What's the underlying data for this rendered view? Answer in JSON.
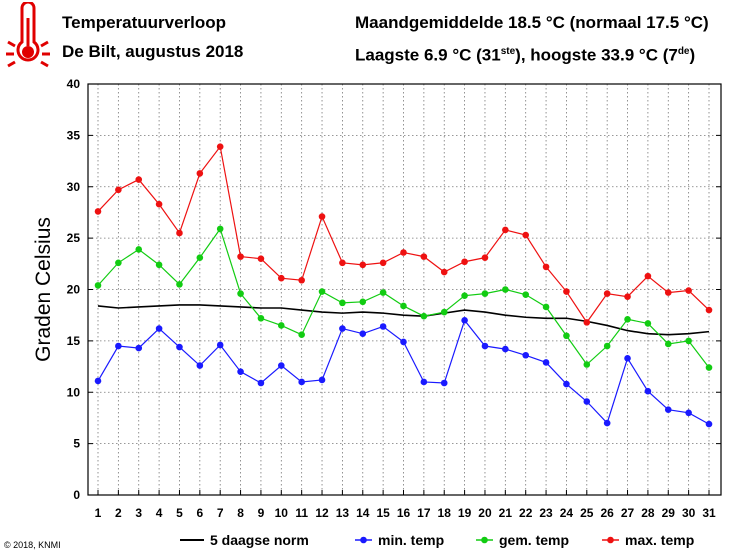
{
  "header": {
    "title": "Temperatuurverloop",
    "subtitle": "De Bilt, augustus 2018",
    "monthly_line": "Maandgemiddelde 18.5 °C (normaal 17.5 °C)",
    "low_prefix": "Laagste 6.9 °C (31",
    "low_suffix": "ste",
    "high_mid": "), hoogste 33.9 °C (7",
    "high_suffix": "de",
    "close": ")"
  },
  "copyright": "© 2018, KNMI",
  "icon": "thermometer-icon",
  "colors": {
    "norm": "#000000",
    "min": "#1a1aff",
    "gem": "#12cc12",
    "max": "#ee1111"
  },
  "chart_data": {
    "type": "line",
    "ylabel": "Graden Celsius",
    "ylim": [
      0,
      40
    ],
    "yticks": [
      0,
      5,
      10,
      15,
      20,
      25,
      30,
      35,
      40
    ],
    "grid": "dotted",
    "legend_position": "bottom",
    "categories": [
      "1",
      "2",
      "3",
      "4",
      "5",
      "6",
      "7",
      "8",
      "9",
      "10",
      "11",
      "12",
      "13",
      "14",
      "15",
      "16",
      "17",
      "18",
      "19",
      "20",
      "21",
      "22",
      "23",
      "24",
      "25",
      "26",
      "27",
      "28",
      "29",
      "30",
      "31"
    ],
    "series": [
      {
        "name": "5 daagse norm",
        "key": "norm",
        "markers": false,
        "values": [
          18.4,
          18.2,
          18.3,
          18.4,
          18.5,
          18.5,
          18.4,
          18.3,
          18.2,
          18.2,
          18.0,
          17.8,
          17.7,
          17.8,
          17.7,
          17.5,
          17.4,
          17.7,
          18.0,
          17.8,
          17.5,
          17.3,
          17.2,
          17.2,
          16.9,
          16.5,
          16.0,
          15.7,
          15.6,
          15.7,
          15.9
        ]
      },
      {
        "name": "min. temp",
        "key": "min",
        "markers": true,
        "values": [
          11.1,
          14.5,
          14.3,
          16.2,
          14.4,
          12.6,
          14.6,
          12.0,
          10.9,
          12.6,
          11.0,
          11.2,
          16.2,
          15.7,
          16.4,
          14.9,
          11.0,
          10.9,
          17.0,
          14.5,
          14.2,
          13.6,
          12.9,
          10.8,
          9.1,
          7.0,
          13.3,
          10.1,
          8.3,
          8.0,
          6.9
        ]
      },
      {
        "name": "gem. temp",
        "key": "gem",
        "markers": true,
        "values": [
          20.4,
          22.6,
          23.9,
          22.4,
          20.5,
          23.1,
          25.9,
          19.6,
          17.2,
          16.5,
          15.6,
          19.8,
          18.7,
          18.8,
          19.7,
          18.4,
          17.4,
          17.8,
          19.4,
          19.6,
          20.0,
          19.5,
          18.3,
          15.5,
          12.7,
          14.5,
          17.1,
          16.7,
          14.7,
          15.0,
          12.4
        ]
      },
      {
        "name": "max. temp",
        "key": "max",
        "markers": true,
        "values": [
          27.6,
          29.7,
          30.7,
          28.3,
          25.5,
          31.3,
          33.9,
          23.2,
          23.0,
          21.1,
          20.9,
          27.1,
          22.6,
          22.4,
          22.6,
          23.6,
          23.2,
          21.7,
          22.7,
          23.1,
          25.8,
          25.3,
          22.2,
          19.8,
          16.8,
          19.6,
          19.3,
          21.3,
          19.7,
          19.9,
          18.0
        ]
      }
    ]
  }
}
